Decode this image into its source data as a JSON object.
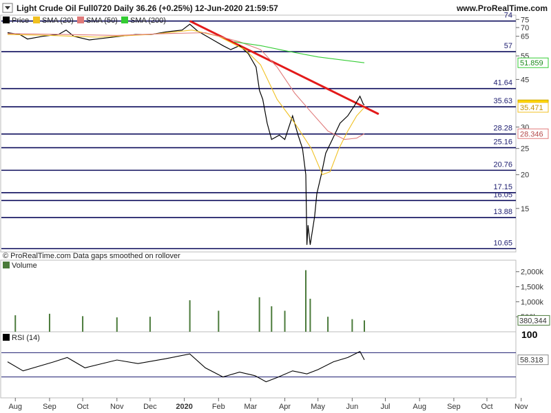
{
  "header": {
    "title": "Light Crude Oil Full0720 Daily 36.26 (+0.25%) 12-Jun-2020 21:59:57",
    "site": "www.ProRealTime.com"
  },
  "legend": [
    {
      "label": "Price",
      "color": "#000000"
    },
    {
      "label": "SMA (20)",
      "color": "#f0c020"
    },
    {
      "label": "SMA (50)",
      "color": "#e07a7a"
    },
    {
      "label": "SMA (200)",
      "color": "#33cc33"
    }
  ],
  "footer_note": "© ProRealTime.com  Data gaps smoothed on rollover",
  "volume_label": "Volume",
  "rsi_label": "RSI (14)",
  "colors": {
    "trendline": "#e31a1a",
    "levels": "#0a0a5a",
    "price": "#000000",
    "volume": "#4a7a3a"
  },
  "chart_data": [
    {
      "type": "line",
      "title": "Light Crude Oil Full0720 Daily",
      "x_ticks": [
        "Aug",
        "Sep",
        "Oct",
        "Nov",
        "Dec",
        "2020",
        "Feb",
        "Mar",
        "Apr",
        "May",
        "Jun",
        "Jul",
        "Aug",
        "Sep",
        "Oct",
        "Nov"
      ],
      "y_ticks": [
        75,
        70,
        65,
        55,
        45,
        30,
        25,
        20,
        15
      ],
      "y_scale": "log",
      "ylim": [
        10,
        76
      ],
      "horizontal_levels": [
        74,
        57,
        41.64,
        35.63,
        28.28,
        25.16,
        20.76,
        17.15,
        16.05,
        13.88,
        10.65
      ],
      "current_values": {
        "price": 36.26,
        "sma20": 35.471,
        "sma50": 28.346,
        "sma200": 51.859
      },
      "trendline": {
        "from": [
          "2020-01-06",
          74
        ],
        "to": [
          "2020-06-25",
          33.5
        ]
      },
      "series": [
        {
          "name": "Price",
          "points": [
            [
              "2019-07-25",
              67
            ],
            [
              "2019-08-05",
              66
            ],
            [
              "2019-08-12",
              63.5
            ],
            [
              "2019-08-26",
              65
            ],
            [
              "2019-09-09",
              66
            ],
            [
              "2019-09-16",
              68.5
            ],
            [
              "2019-09-23",
              65
            ],
            [
              "2019-10-07",
              63
            ],
            [
              "2019-10-14",
              63.5
            ],
            [
              "2019-10-21",
              64
            ],
            [
              "2019-11-04",
              65
            ],
            [
              "2019-11-18",
              66
            ],
            [
              "2019-12-02",
              66
            ],
            [
              "2019-12-16",
              67.5
            ],
            [
              "2019-12-30",
              68.5
            ],
            [
              "2020-01-06",
              72
            ],
            [
              "2020-01-13",
              68
            ],
            [
              "2020-01-27",
              63
            ],
            [
              "2020-02-05",
              60
            ],
            [
              "2020-02-12",
              58
            ],
            [
              "2020-02-20",
              60
            ],
            [
              "2020-02-28",
              56
            ],
            [
              "2020-03-06",
              50
            ],
            [
              "2020-03-09",
              41
            ],
            [
              "2020-03-12",
              38
            ],
            [
              "2020-03-16",
              31
            ],
            [
              "2020-03-20",
              27
            ],
            [
              "2020-03-27",
              28
            ],
            [
              "2020-04-01",
              27
            ],
            [
              "2020-04-08",
              33
            ],
            [
              "2020-04-13",
              28
            ],
            [
              "2020-04-17",
              25
            ],
            [
              "2020-04-20",
              20
            ],
            [
              "2020-04-21",
              11
            ],
            [
              "2020-04-22",
              13
            ],
            [
              "2020-04-24",
              11
            ],
            [
              "2020-04-28",
              14
            ],
            [
              "2020-04-30",
              17
            ],
            [
              "2020-05-04",
              20
            ],
            [
              "2020-05-08",
              24
            ],
            [
              "2020-05-14",
              27
            ],
            [
              "2020-05-21",
              31
            ],
            [
              "2020-05-28",
              33
            ],
            [
              "2020-06-03",
              36
            ],
            [
              "2020-06-08",
              39
            ],
            [
              "2020-06-11",
              36.5
            ],
            [
              "2020-06-12",
              36.26
            ]
          ]
        },
        {
          "name": "SMA (20)",
          "points": [
            [
              "2019-07-25",
              66
            ],
            [
              "2019-09-01",
              65.5
            ],
            [
              "2019-10-15",
              64.5
            ],
            [
              "2019-12-01",
              66
            ],
            [
              "2020-01-08",
              68.5
            ],
            [
              "2020-02-01",
              65
            ],
            [
              "2020-02-25",
              58
            ],
            [
              "2020-03-10",
              51
            ],
            [
              "2020-03-25",
              38
            ],
            [
              "2020-04-10",
              31
            ],
            [
              "2020-04-25",
              25
            ],
            [
              "2020-05-05",
              20
            ],
            [
              "2020-05-12",
              20.5
            ],
            [
              "2020-05-20",
              25
            ],
            [
              "2020-05-28",
              29
            ],
            [
              "2020-06-05",
              33
            ],
            [
              "2020-06-12",
              35.47
            ]
          ]
        },
        {
          "name": "SMA (50)",
          "points": [
            [
              "2019-07-25",
              66.5
            ],
            [
              "2019-09-15",
              66
            ],
            [
              "2019-11-01",
              65.5
            ],
            [
              "2019-12-15",
              66.5
            ],
            [
              "2020-01-20",
              67
            ],
            [
              "2020-02-20",
              62
            ],
            [
              "2020-03-10",
              58
            ],
            [
              "2020-03-25",
              50
            ],
            [
              "2020-04-10",
              40
            ],
            [
              "2020-04-25",
              34
            ],
            [
              "2020-05-10",
              29
            ],
            [
              "2020-05-25",
              27
            ],
            [
              "2020-06-05",
              27.3
            ],
            [
              "2020-06-12",
              28.35
            ]
          ]
        },
        {
          "name": "SMA (200)",
          "points": [
            [
              "2020-02-15",
              62
            ],
            [
              "2020-03-10",
              60
            ],
            [
              "2020-04-01",
              57.5
            ],
            [
              "2020-05-01",
              54.5
            ],
            [
              "2020-06-12",
              51.86
            ]
          ]
        }
      ]
    },
    {
      "type": "bar",
      "title": "Volume",
      "y_ticks": [
        "2,000k",
        "1,500k",
        "1,000k",
        "500k"
      ],
      "ylim": [
        0,
        2200
      ],
      "current_value": "380,344",
      "series": [
        {
          "name": "Volume",
          "points": [
            [
              "2019-08-01",
              550
            ],
            [
              "2019-09-01",
              600
            ],
            [
              "2019-10-01",
              520
            ],
            [
              "2019-11-01",
              480
            ],
            [
              "2019-12-01",
              500
            ],
            [
              "2020-01-06",
              1050
            ],
            [
              "2020-02-01",
              700
            ],
            [
              "2020-03-09",
              1150
            ],
            [
              "2020-03-20",
              850
            ],
            [
              "2020-04-01",
              700
            ],
            [
              "2020-04-20",
              2050
            ],
            [
              "2020-04-24",
              1100
            ],
            [
              "2020-05-10",
              500
            ],
            [
              "2020-06-01",
              420
            ],
            [
              "2020-06-12",
              380.344
            ]
          ]
        }
      ]
    },
    {
      "type": "line",
      "title": "RSI (14)",
      "y_ticks": [
        100
      ],
      "levels": [
        70,
        30
      ],
      "ylim": [
        0,
        100
      ],
      "current_value": 58.318,
      "series": [
        {
          "name": "RSI (14)",
          "points": [
            [
              "2019-07-25",
              55
            ],
            [
              "2019-08-08",
              40
            ],
            [
              "2019-09-05",
              55
            ],
            [
              "2019-09-17",
              62
            ],
            [
              "2019-10-03",
              45
            ],
            [
              "2019-11-01",
              58
            ],
            [
              "2019-11-20",
              52
            ],
            [
              "2019-12-15",
              60
            ],
            [
              "2020-01-06",
              68
            ],
            [
              "2020-01-20",
              45
            ],
            [
              "2020-02-05",
              30
            ],
            [
              "2020-02-20",
              38
            ],
            [
              "2020-03-05",
              32
            ],
            [
              "2020-03-15",
              22
            ],
            [
              "2020-03-25",
              29
            ],
            [
              "2020-04-08",
              40
            ],
            [
              "2020-04-21",
              35
            ],
            [
              "2020-05-01",
              42
            ],
            [
              "2020-05-15",
              55
            ],
            [
              "2020-05-28",
              62
            ],
            [
              "2020-06-08",
              72
            ],
            [
              "2020-06-12",
              58.3
            ]
          ]
        }
      ]
    }
  ]
}
